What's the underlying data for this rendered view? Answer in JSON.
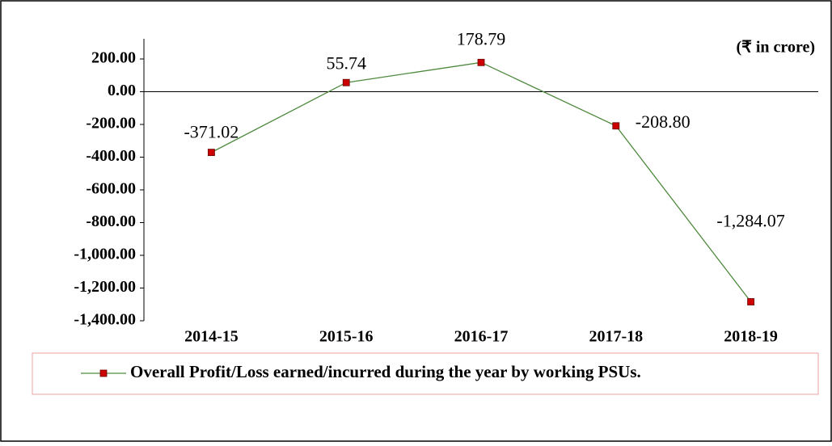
{
  "chart_data": {
    "type": "line",
    "annotation": "(₹ in crore)",
    "categories": [
      "2014-15",
      "2015-16",
      "2016-17",
      "2017-18",
      "2018-19"
    ],
    "series": [
      {
        "name": "Overall Profit/Loss earned/incurred during the year by working PSUs.",
        "color": "#4e8a3e",
        "marker_color": "#cc0000",
        "values": [
          -371.02,
          55.74,
          178.79,
          -208.8,
          -1284.07
        ],
        "value_labels": [
          "-371.02",
          "55.74",
          "178.79",
          "-208.80",
          "-1,284.07"
        ]
      }
    ],
    "ylim": [
      -1400,
      200
    ],
    "yticks": [
      {
        "value": 200,
        "label": "200.00"
      },
      {
        "value": 0,
        "label": "0.00"
      },
      {
        "value": -200,
        "label": "-200.00"
      },
      {
        "value": -400,
        "label": "-400.00"
      },
      {
        "value": -600,
        "label": "-600.00"
      },
      {
        "value": -800,
        "label": "-800.00"
      },
      {
        "value": -1000,
        "label": "-1,000.00"
      },
      {
        "value": -1200,
        "label": "-1,200.00"
      },
      {
        "value": -1400,
        "label": "-1,400.00"
      }
    ],
    "legend": "bottom"
  }
}
